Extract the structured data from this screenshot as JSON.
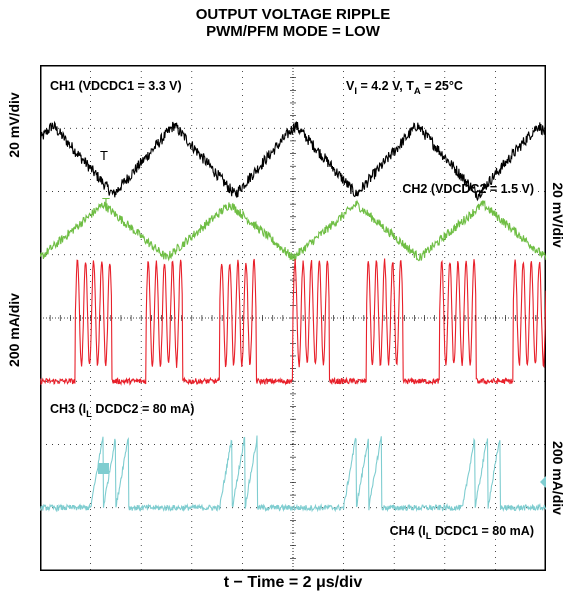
{
  "title_line1": "OUTPUT VOLTAGE RIPPLE",
  "title_line2": "PWM/PFM MODE = LOW",
  "xlabel": "t − Time = 2 μs/div",
  "ylabel_left_top": "20 mV/div",
  "ylabel_left_bottom": "200 mA/div",
  "ylabel_right_top": "20 mV/div",
  "ylabel_right_bottom": "200 mA/div",
  "annotations": {
    "ch1": "CH1 (VDCDC1 = 3.3 V)",
    "conditions": {
      "vi_prefix": "V",
      "vi_sub": "I",
      "vi_value": " = 4.2 V,  T",
      "ta_sub": "A",
      "ta_value": " = 25°C"
    },
    "ch2": "CH2 (VDCDC2 = 1.5 V)",
    "ch3": {
      "prefix": "CH3 (I",
      "sub": "L",
      "suffix": " DCDC2 = 80 mA)"
    },
    "ch4": {
      "prefix": "CH4 (I",
      "sub": "L",
      "suffix": " DCDC1 = 80 mA)"
    }
  },
  "colors": {
    "ch1": "#000000",
    "ch2": "#6fbe44",
    "ch3": "#e8202a",
    "ch4": "#7fcdd0"
  },
  "chart_data": {
    "type": "line",
    "title": "OUTPUT VOLTAGE RIPPLE PWM/PFM MODE = LOW",
    "xlabel": "t − Time = 2 μs/div",
    "x_units": "div",
    "x_range": [
      0,
      10
    ],
    "y_units": "div",
    "y_range": [
      -4,
      4
    ],
    "grid": true,
    "series": [
      {
        "name": "CH1 (VDCDC1 = 3.3 V)",
        "scale": "20 mV/div",
        "waveform": "triangle",
        "peaks_x": [
          0.25,
          2.65,
          5.05,
          7.45,
          9.85
        ],
        "high": 3.05,
        "low": 1.95
      },
      {
        "name": "CH2 (VDCDC2 = 1.5 V)",
        "scale": "20 mV/div",
        "waveform": "triangle",
        "peaks_x": [
          1.25,
          3.75,
          6.25,
          8.75
        ],
        "high": 1.8,
        "low": 0.95
      },
      {
        "name": "CH3 (IL DCDC2 = 80 mA)",
        "scale": "200 mA/div",
        "waveform": "burst",
        "burst_starts_x": [
          0.7,
          2.1,
          3.55,
          5.0,
          6.45,
          7.9,
          9.35
        ],
        "burst_width": 0.72,
        "high": 0.9,
        "base": -1.0
      },
      {
        "name": "CH4 (IL DCDC1 = 80 mA)",
        "scale": "200 mA/div",
        "waveform": "sawtooth burst",
        "burst_starts_x": [
          1.0,
          3.55,
          6.0,
          8.35
        ],
        "burst_width": 0.75,
        "high": -1.85,
        "base": -3.0
      }
    ]
  }
}
